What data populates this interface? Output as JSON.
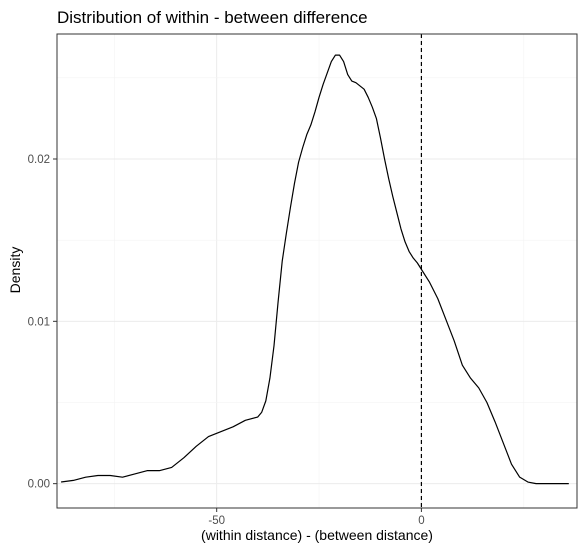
{
  "chart_data": {
    "type": "line",
    "title": "Distribution of within - between difference",
    "xlabel": "(within distance) - (between distance)",
    "ylabel": "Density",
    "xlim": [
      -89,
      38
    ],
    "ylim": [
      -0.0015,
      0.0277
    ],
    "x_ticks": [
      -50,
      0
    ],
    "x_tick_labels": [
      "-50",
      "0"
    ],
    "y_ticks": [
      0.0,
      0.01,
      0.02
    ],
    "y_tick_labels": [
      "0.00",
      "0.01",
      "0.02"
    ],
    "grid": true,
    "reference_line": {
      "x": 0,
      "style": "dashed"
    },
    "series": [
      {
        "x": [
          -88,
          -85,
          -82,
          -79,
          -76,
          -73,
          -70,
          -67,
          -64,
          -61,
          -58,
          -55,
          -52,
          -49,
          -46,
          -43,
          -40,
          -39,
          -38,
          -37,
          -36,
          -35,
          -34,
          -33,
          -32,
          -31,
          -30,
          -29,
          -28,
          -27,
          -26,
          -25,
          -24,
          -23,
          -22,
          -21,
          -20,
          -19,
          -18,
          -17,
          -16,
          -15,
          -14,
          -13,
          -12,
          -11,
          -10,
          -9,
          -8,
          -7,
          -6,
          -5,
          -4,
          -3,
          -2,
          -1,
          0,
          2,
          4,
          6,
          8,
          10,
          12,
          14,
          16,
          18,
          20,
          22,
          24,
          26,
          28,
          30,
          32,
          34,
          36
        ],
        "y": [
          0.0001,
          0.0002,
          0.0004,
          0.0005,
          0.0005,
          0.0004,
          0.0006,
          0.0008,
          0.0008,
          0.001,
          0.0016,
          0.0023,
          0.0029,
          0.0032,
          0.0035,
          0.0039,
          0.0041,
          0.0044,
          0.0051,
          0.0065,
          0.0085,
          0.0112,
          0.0137,
          0.0154,
          0.017,
          0.0185,
          0.0198,
          0.0207,
          0.0215,
          0.0221,
          0.0229,
          0.0238,
          0.0246,
          0.0253,
          0.026,
          0.0264,
          0.0264,
          0.026,
          0.0252,
          0.0248,
          0.0247,
          0.0245,
          0.0243,
          0.0238,
          0.0232,
          0.0225,
          0.0213,
          0.02,
          0.0188,
          0.0177,
          0.0167,
          0.0157,
          0.0149,
          0.0143,
          0.0139,
          0.0136,
          0.0132,
          0.0124,
          0.0114,
          0.0101,
          0.0088,
          0.0073,
          0.0065,
          0.0059,
          0.005,
          0.0038,
          0.0025,
          0.0012,
          0.0004,
          0.0001,
          0.0,
          0.0,
          0.0,
          0.0,
          0.0
        ]
      }
    ]
  }
}
